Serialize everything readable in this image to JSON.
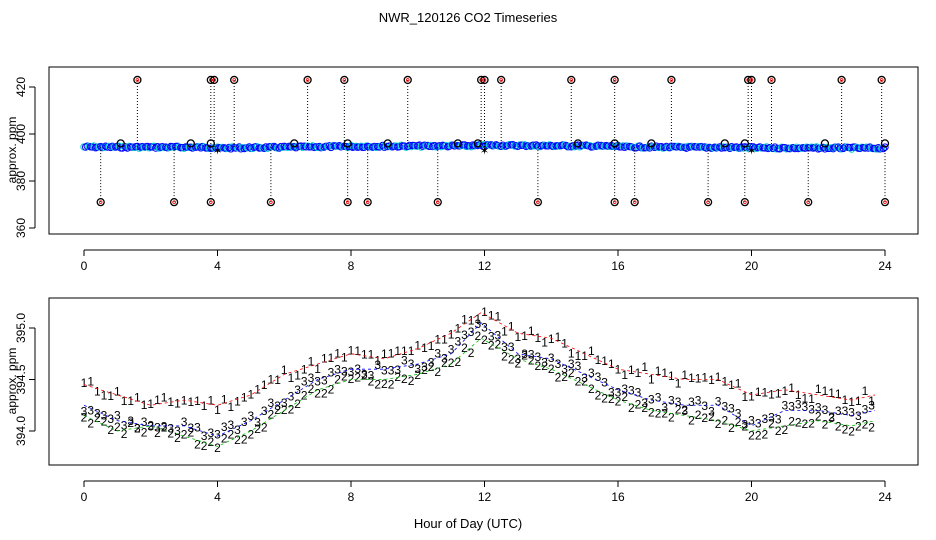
{
  "title": "NWR_120126  CO2 Timeseries",
  "xlabel": "Hour of Day (UTC)",
  "colors": {
    "series1": "#ff0000",
    "series2": "#00bb00",
    "series3": "#0000ff",
    "outlier": "#000000",
    "flagged": "#00cccc",
    "axis": "#000000"
  },
  "chart_data": [
    {
      "type": "scatter",
      "title": "NWR_120126  CO2 Timeseries",
      "ylabel": "approx. ppm",
      "xlim": [
        0,
        24
      ],
      "ylim": [
        360,
        425
      ],
      "xticks": [
        0,
        4,
        8,
        12,
        16,
        20,
        24
      ],
      "yticks": [
        360,
        380,
        400,
        420
      ],
      "baseline_segments": [
        {
          "x": [
            0.0,
            4.0
          ],
          "y": [
            394.5,
            394.3
          ]
        },
        {
          "x": [
            4.0,
            8.0
          ],
          "y": [
            394.0,
            394.7
          ]
        },
        {
          "x": [
            8.0,
            12.0
          ],
          "y": [
            394.7,
            395.0
          ]
        },
        {
          "x": [
            12.0,
            16.0
          ],
          "y": [
            395.2,
            394.8
          ]
        },
        {
          "x": [
            16.0,
            20.0
          ],
          "y": [
            394.5,
            394.2
          ]
        },
        {
          "x": [
            20.0,
            24.0
          ],
          "y": [
            394.1,
            394.0
          ]
        }
      ],
      "outliers_high": [
        1.6,
        3.8,
        3.9,
        4.5,
        6.7,
        7.8,
        9.7,
        11.9,
        12.0,
        12.5,
        14.6,
        15.9,
        17.6,
        19.9,
        20.0,
        20.6,
        22.7,
        23.9
      ],
      "outliers_high_value": 423,
      "outliers_low": [
        0.5,
        2.7,
        3.8,
        5.6,
        7.9,
        8.5,
        10.6,
        13.6,
        15.9,
        16.5,
        18.7,
        19.8,
        21.7,
        24.0
      ],
      "outliers_low_value": 371,
      "outliers_mid": [
        1.1,
        3.2,
        3.8,
        6.3,
        7.9,
        9.1,
        11.2,
        11.8,
        14.8,
        15.9,
        17.0,
        19.2,
        19.8,
        22.2,
        24.0
      ],
      "outliers_mid_value": 396,
      "flagged": [
        4.0,
        12.0,
        20.0
      ],
      "flagged_value": 393
    },
    {
      "type": "line",
      "ylabel": "approx. ppm",
      "xlim": [
        0,
        24
      ],
      "ylim": [
        393.8,
        395.2
      ],
      "xticks": [
        0,
        4,
        8,
        12,
        16,
        20,
        24
      ],
      "yticks": [
        394.0,
        394.5,
        395.0
      ],
      "series": [
        {
          "name": "1",
          "marker": "1",
          "color": "#ff0000",
          "x": [
            0,
            1,
            2,
            3,
            4,
            5,
            6,
            7,
            8,
            9,
            10,
            11,
            11.9,
            13,
            14,
            15,
            16,
            17,
            18,
            19,
            20,
            21,
            22,
            23,
            23.7
          ],
          "values": [
            394.45,
            394.35,
            394.25,
            394.3,
            394.25,
            394.35,
            394.55,
            394.65,
            394.75,
            394.7,
            394.8,
            394.95,
            395.15,
            394.95,
            394.9,
            394.75,
            394.6,
            394.55,
            394.5,
            394.5,
            394.35,
            394.4,
            394.35,
            394.3,
            394.35
          ]
        },
        {
          "name": "2",
          "marker": "2",
          "color": "#00bb00",
          "x": [
            0,
            1,
            2,
            3,
            4,
            5,
            6,
            7,
            8,
            9,
            10,
            11,
            11.9,
            13,
            14,
            15,
            16,
            17,
            18,
            19,
            20,
            21,
            22,
            23,
            23.7
          ],
          "values": [
            394.15,
            394.0,
            394.05,
            393.95,
            393.85,
            394.0,
            394.2,
            394.4,
            394.5,
            394.5,
            394.55,
            394.65,
            394.9,
            394.7,
            394.6,
            394.45,
            394.3,
            394.2,
            394.15,
            394.1,
            394.0,
            394.05,
            394.1,
            394.05,
            394.1
          ]
        },
        {
          "name": "3",
          "marker": "3",
          "color": "#0000ff",
          "x": [
            0,
            1,
            2,
            3,
            4,
            5,
            6,
            7,
            8,
            9,
            10,
            11,
            11.9,
            13,
            14,
            15,
            16,
            17,
            18,
            19,
            20,
            21,
            22,
            23,
            23.7
          ],
          "values": [
            394.25,
            394.1,
            394.05,
            394.05,
            393.95,
            394.1,
            394.3,
            394.5,
            394.6,
            394.6,
            394.65,
            394.75,
            395.05,
            394.75,
            394.7,
            394.55,
            394.4,
            394.3,
            394.25,
            394.25,
            394.05,
            394.2,
            394.2,
            394.15,
            394.2
          ]
        }
      ]
    }
  ]
}
